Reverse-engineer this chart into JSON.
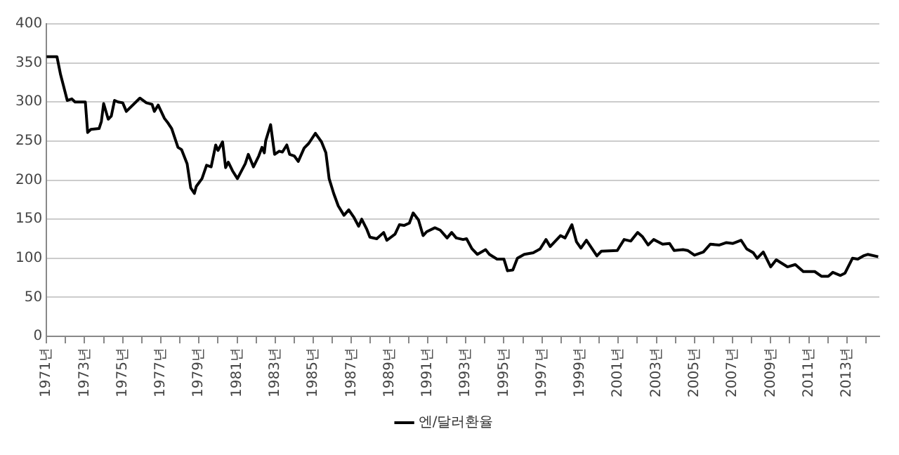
{
  "chart_data": {
    "type": "line",
    "x": [
      1971.0,
      1971.55,
      1971.74,
      1971.9,
      1972.09,
      1972.33,
      1972.5,
      1973.04,
      1973.16,
      1973.33,
      1973.76,
      1973.88,
      1974.0,
      1974.24,
      1974.4,
      1974.57,
      1974.76,
      1975.0,
      1975.19,
      1975.9,
      1976.24,
      1976.54,
      1976.66,
      1976.86,
      1977.19,
      1977.38,
      1977.57,
      1977.9,
      1978.09,
      1978.38,
      1978.57,
      1978.76,
      1978.86,
      1979.16,
      1979.4,
      1979.64,
      1979.88,
      1980.0,
      1980.24,
      1980.4,
      1980.54,
      1980.76,
      1981.02,
      1981.43,
      1981.59,
      1981.86,
      1982.14,
      1982.31,
      1982.43,
      1982.5,
      1982.76,
      1982.97,
      1983.21,
      1983.38,
      1983.61,
      1983.76,
      1984.0,
      1984.21,
      1984.52,
      1984.76,
      1985.11,
      1985.43,
      1985.66,
      1985.83,
      1986.07,
      1986.31,
      1986.61,
      1986.86,
      1987.14,
      1987.38,
      1987.54,
      1987.81,
      1987.97,
      1988.33,
      1988.69,
      1988.86,
      1989.29,
      1989.52,
      1989.76,
      1990.04,
      1990.24,
      1990.52,
      1990.76,
      1990.95,
      1991.38,
      1991.66,
      1992.02,
      1992.26,
      1992.5,
      1992.86,
      1993.04,
      1993.33,
      1993.61,
      1994.04,
      1994.24,
      1994.64,
      1995.0,
      1995.19,
      1995.47,
      1995.71,
      1996.07,
      1996.54,
      1996.9,
      1997.21,
      1997.43,
      1997.97,
      1998.21,
      1998.57,
      1998.81,
      1999.04,
      1999.33,
      1999.88,
      2000.11,
      2000.95,
      2001.31,
      2001.66,
      2002.02,
      2002.26,
      2002.57,
      2002.86,
      2003.33,
      2003.69,
      2003.93,
      2004.4,
      2004.64,
      2005.0,
      2005.47,
      2005.83,
      2006.31,
      2006.66,
      2007.02,
      2007.45,
      2007.74,
      2008.09,
      2008.29,
      2008.61,
      2009.0,
      2009.29,
      2009.88,
      2010.29,
      2010.71,
      2011.31,
      2011.66,
      2012.02,
      2012.26,
      2012.66,
      2012.9,
      2013.29,
      2013.57,
      2013.86,
      2014.09,
      2014.64
    ],
    "series": [
      {
        "name": "엔/달러환율",
        "color": "#000000",
        "values": [
          358,
          358,
          335,
          320,
          302,
          304,
          300,
          300,
          261,
          265,
          266,
          275,
          298,
          278,
          282,
          302,
          300,
          299,
          288,
          305,
          299,
          297,
          288,
          296,
          279,
          273,
          266,
          242,
          239,
          221,
          190,
          183,
          192,
          202,
          219,
          217,
          245,
          238,
          249,
          216,
          223,
          212,
          202,
          221,
          233,
          217,
          231,
          242,
          235,
          250,
          271,
          233,
          237,
          236,
          245,
          233,
          231,
          224,
          241,
          247,
          260,
          249,
          235,
          202,
          183,
          167,
          155,
          162,
          152,
          141,
          150,
          137,
          127,
          125,
          133,
          123,
          131,
          143,
          142,
          145,
          158,
          149,
          129,
          134,
          139,
          136,
          126,
          133,
          126,
          124,
          125,
          112,
          105,
          111,
          105,
          99,
          99,
          84,
          85,
          100,
          105,
          107,
          112,
          124,
          115,
          129,
          126,
          143,
          121,
          113,
          123,
          103,
          109,
          110,
          124,
          122,
          133,
          128,
          117,
          124,
          118,
          119,
          110,
          111,
          110,
          104,
          108,
          118,
          117,
          120,
          119,
          123,
          112,
          107,
          100,
          108,
          89,
          98,
          89,
          92,
          83,
          83,
          77,
          77,
          82,
          78,
          81,
          100,
          99,
          103,
          105,
          102
        ]
      }
    ],
    "xlim": [
      1971,
      2014.7
    ],
    "xticks": [
      {
        "value": 1971,
        "label": "1971년"
      },
      {
        "value": 1972,
        "label": null
      },
      {
        "value": 1973,
        "label": "1973년"
      },
      {
        "value": 1974,
        "label": null
      },
      {
        "value": 1975,
        "label": "1975년"
      },
      {
        "value": 1976,
        "label": null
      },
      {
        "value": 1977,
        "label": "1977년"
      },
      {
        "value": 1978,
        "label": null
      },
      {
        "value": 1979,
        "label": "1979년"
      },
      {
        "value": 1980,
        "label": null
      },
      {
        "value": 1981,
        "label": "1981년"
      },
      {
        "value": 1982,
        "label": null
      },
      {
        "value": 1983,
        "label": "1983년"
      },
      {
        "value": 1984,
        "label": null
      },
      {
        "value": 1985,
        "label": "1985년"
      },
      {
        "value": 1986,
        "label": null
      },
      {
        "value": 1987,
        "label": "1987년"
      },
      {
        "value": 1988,
        "label": null
      },
      {
        "value": 1989,
        "label": "1989년"
      },
      {
        "value": 1990,
        "label": null
      },
      {
        "value": 1991,
        "label": "1991년"
      },
      {
        "value": 1992,
        "label": null
      },
      {
        "value": 1993,
        "label": "1993년"
      },
      {
        "value": 1994,
        "label": null
      },
      {
        "value": 1995,
        "label": "1995년"
      },
      {
        "value": 1996,
        "label": null
      },
      {
        "value": 1997,
        "label": "1997년"
      },
      {
        "value": 1998,
        "label": null
      },
      {
        "value": 1999,
        "label": "1999년"
      },
      {
        "value": 2000,
        "label": null
      },
      {
        "value": 2001,
        "label": "2001년"
      },
      {
        "value": 2002,
        "label": null
      },
      {
        "value": 2003,
        "label": "2003년"
      },
      {
        "value": 2004,
        "label": null
      },
      {
        "value": 2005,
        "label": "2005년"
      },
      {
        "value": 2006,
        "label": null
      },
      {
        "value": 2007,
        "label": "2007년"
      },
      {
        "value": 2008,
        "label": null
      },
      {
        "value": 2009,
        "label": "2009년"
      },
      {
        "value": 2010,
        "label": null
      },
      {
        "value": 2011,
        "label": "2011년"
      },
      {
        "value": 2012,
        "label": null
      },
      {
        "value": 2013,
        "label": "2013년"
      },
      {
        "value": 2014,
        "label": null
      }
    ],
    "ylim": [
      0,
      400
    ],
    "yticks": [
      0,
      50,
      100,
      150,
      200,
      250,
      300,
      350,
      400
    ],
    "grid": "y",
    "legend": "bottom",
    "marker": "none",
    "line_style": "solid"
  }
}
